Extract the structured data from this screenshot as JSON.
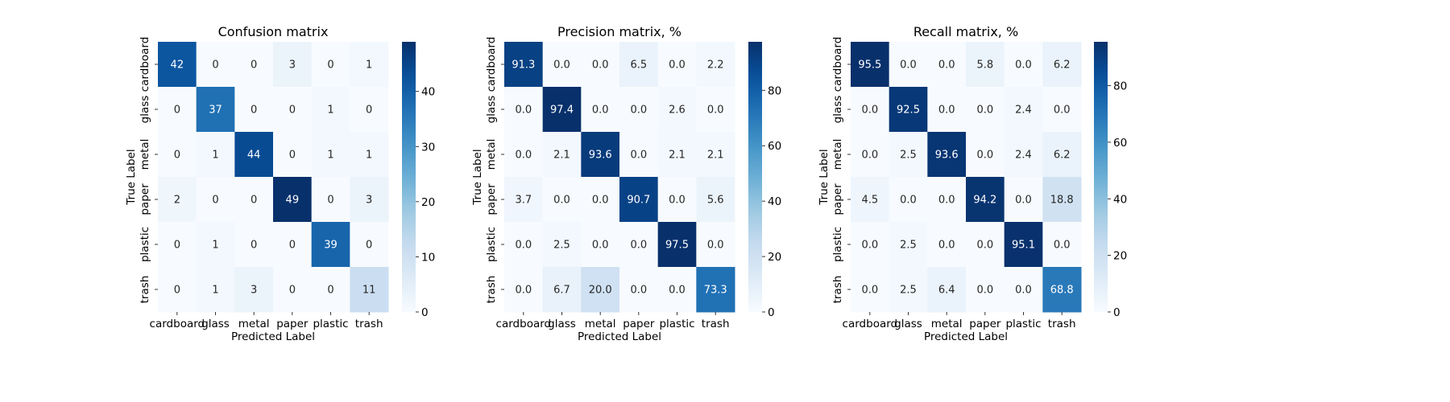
{
  "chart_data": [
    {
      "type": "heatmap",
      "title": "Confusion matrix",
      "xlabel": "Predicted Label",
      "ylabel": "True Label",
      "x_categories": [
        "cardboard",
        "glass",
        "metal",
        "paper",
        "plastic",
        "trash"
      ],
      "y_categories": [
        "cardboard",
        "glass",
        "metal",
        "paper",
        "plastic",
        "trash"
      ],
      "values": [
        [
          42,
          0,
          0,
          3,
          0,
          1
        ],
        [
          0,
          37,
          0,
          0,
          1,
          0
        ],
        [
          0,
          1,
          44,
          0,
          1,
          1
        ],
        [
          2,
          0,
          0,
          49,
          0,
          3
        ],
        [
          0,
          1,
          0,
          0,
          39,
          0
        ],
        [
          0,
          1,
          3,
          0,
          0,
          11
        ]
      ],
      "decimals": 0,
      "colormap": "Blues",
      "vmin": 0,
      "vmax": 49,
      "colorbar_ticks": [
        0,
        10,
        20,
        30,
        40
      ]
    },
    {
      "type": "heatmap",
      "title": "Precision matrix, %",
      "xlabel": "Predicted Label",
      "ylabel": "True Label",
      "x_categories": [
        "cardboard",
        "glass",
        "metal",
        "paper",
        "plastic",
        "trash"
      ],
      "y_categories": [
        "cardboard",
        "glass",
        "metal",
        "paper",
        "plastic",
        "trash"
      ],
      "values": [
        [
          91.3,
          0.0,
          0.0,
          6.5,
          0.0,
          2.2
        ],
        [
          0.0,
          97.4,
          0.0,
          0.0,
          2.6,
          0.0
        ],
        [
          0.0,
          2.1,
          93.6,
          0.0,
          2.1,
          2.1
        ],
        [
          3.7,
          0.0,
          0.0,
          90.7,
          0.0,
          5.6
        ],
        [
          0.0,
          2.5,
          0.0,
          0.0,
          97.5,
          0.0
        ],
        [
          0.0,
          6.7,
          20.0,
          0.0,
          0.0,
          73.3
        ]
      ],
      "decimals": 1,
      "colormap": "Blues",
      "vmin": 0,
      "vmax": 97.5,
      "colorbar_ticks": [
        0,
        20,
        40,
        60,
        80
      ]
    },
    {
      "type": "heatmap",
      "title": "Recall matrix, %",
      "xlabel": "Predicted Label",
      "ylabel": "True Label",
      "x_categories": [
        "cardboard",
        "glass",
        "metal",
        "paper",
        "plastic",
        "trash"
      ],
      "y_categories": [
        "cardboard",
        "glass",
        "metal",
        "paper",
        "plastic",
        "trash"
      ],
      "values": [
        [
          95.5,
          0.0,
          0.0,
          5.8,
          0.0,
          6.2
        ],
        [
          0.0,
          92.5,
          0.0,
          0.0,
          2.4,
          0.0
        ],
        [
          0.0,
          2.5,
          93.6,
          0.0,
          2.4,
          6.2
        ],
        [
          4.5,
          0.0,
          0.0,
          94.2,
          0.0,
          18.8
        ],
        [
          0.0,
          2.5,
          0.0,
          0.0,
          95.1,
          0.0
        ],
        [
          0.0,
          2.5,
          6.4,
          0.0,
          0.0,
          68.8
        ]
      ],
      "decimals": 1,
      "colormap": "Blues",
      "vmin": 0,
      "vmax": 95.5,
      "colorbar_ticks": [
        0,
        20,
        40,
        60,
        80
      ]
    }
  ]
}
